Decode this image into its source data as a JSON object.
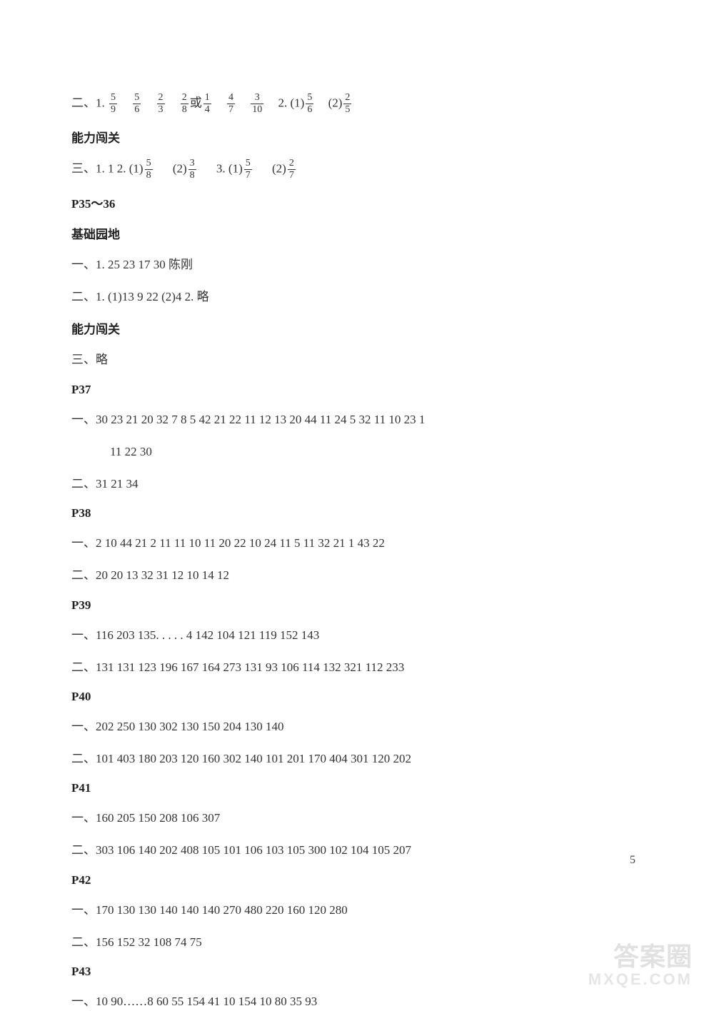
{
  "text_color": "#333333",
  "heading_color": "#222222",
  "background_color": "#ffffff",
  "page_number": "5",
  "watermark_top": "答案圈",
  "watermark_bottom": "MXQE.COM",
  "l1": {
    "prefix": "二、1.",
    "f1n": "5",
    "f1d": "9",
    "f2n": "5",
    "f2d": "6",
    "f3n": "2",
    "f3d": "3",
    "f4n": "2",
    "f4d": "8",
    "or": "或",
    "f5n": "1",
    "f5d": "4",
    "f6n": "4",
    "f6d": "7",
    "f7n": "3",
    "f7d": "10",
    "p2": "2. (1)",
    "f8n": "5",
    "f8d": "6",
    "p3": "(2)",
    "f9n": "2",
    "f9d": "5"
  },
  "h1": "能力闯关",
  "l2": {
    "prefix": "三、1. 1    2. (1)",
    "f1n": "5",
    "f1d": "8",
    "p2": "(2)",
    "f2n": "3",
    "f2d": "8",
    "p3": "3. (1)",
    "f3n": "5",
    "f3d": "7",
    "p4": "(2)",
    "f4n": "2",
    "f4d": "7"
  },
  "h2": "P35～36",
  "h3": "基础园地",
  "l3": "一、1. 25   23   17   30   陈刚",
  "l4": "二、1. (1)13   9   22   (2)4   2. 略",
  "h4": "能力闯关",
  "l5": "三、略",
  "h5": "P37",
  "l6a": "一、30   23   21   20   32   7   8   5   42   21   22   11   12   13   20   44   11   24   5   32   11   10   23   1",
  "l6b": "11   22   30",
  "l7": "二、31   21   34",
  "h6": "P38",
  "l8": "一、2   10   44   21   2   11   11   10   11   20   22   10   24   11   5   11   32   21   1   43   22",
  "l9": "二、20   20   13   32   31   12   10   14   12",
  "h7": "P39",
  "l10": "一、116   203   135. . . . . 4   142   104   121   119   152   143",
  "l11": "二、131   131   123   196   167   164   273   131   93   106   114   132   321   112   233",
  "h8": "P40",
  "l12": "一、202   250   130   302   130   150   204   130   140",
  "l13": "二、101   403   180   203   120   160   302   140   101   201   170   404   301   120   202",
  "h9": "P41",
  "l14": "一、160   205   150   208   106   307",
  "l15": "二、303   106   140   202   408   105   101   106   103   105   300   102   104   105   207",
  "h10": "P42",
  "l16": "一、170   130   130   140   140   140   270   480   220   160   120   280",
  "l17": "二、156   152   32   108   74   75",
  "h11": "P43",
  "l18": "一、10   90……8   60   55   154   41   10   154   10   80   35   93"
}
